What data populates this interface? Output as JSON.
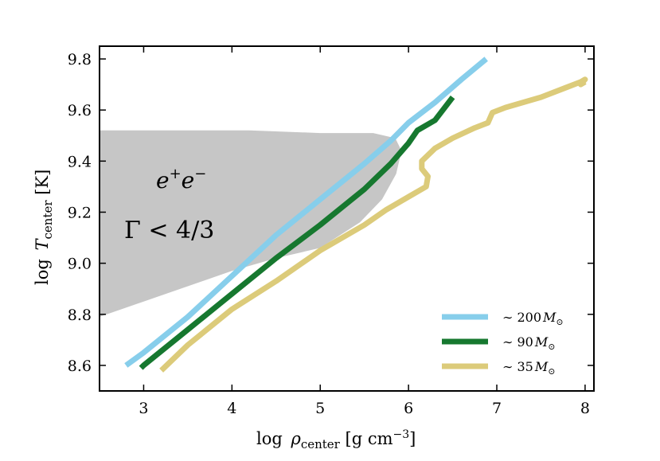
{
  "chart_data": {
    "type": "line",
    "title": "",
    "xlabel": {
      "prefix": "log ",
      "symbol": "ρ",
      "sub": "center",
      "units_pre": " [g cm",
      "units_sup": "−3",
      "units_post": "]"
    },
    "ylabel": {
      "prefix": "log ",
      "symbol": "T",
      "sub": "center",
      "units": " [K]"
    },
    "xlim": [
      2.5,
      8.1
    ],
    "ylim": [
      8.5,
      9.85
    ],
    "xticks": [
      3,
      4,
      5,
      6,
      7,
      8
    ],
    "yticks": [
      8.6,
      8.8,
      9.0,
      9.2,
      9.4,
      9.6,
      9.8
    ],
    "xtick_labels": [
      "3",
      "4",
      "5",
      "6",
      "7",
      "8"
    ],
    "ytick_labels": [
      "8.6",
      "8.8",
      "9.0",
      "9.2",
      "9.4",
      "9.6",
      "9.8"
    ],
    "instability_region": {
      "color": "#c6c6c6",
      "label_line1": {
        "e": "e",
        "plus": "+",
        "e2": "e",
        "minus": "−"
      },
      "label_line2": "Γ < 4/3",
      "points": [
        [
          2.5,
          9.52
        ],
        [
          4.2,
          9.52
        ],
        [
          5.0,
          9.51
        ],
        [
          5.6,
          9.51
        ],
        [
          5.85,
          9.49
        ],
        [
          5.92,
          9.44
        ],
        [
          5.86,
          9.35
        ],
        [
          5.7,
          9.25
        ],
        [
          5.45,
          9.16
        ],
        [
          5.0,
          9.06
        ],
        [
          4.5,
          9.02
        ],
        [
          4.0,
          8.97
        ],
        [
          3.5,
          8.91
        ],
        [
          3.0,
          8.85
        ],
        [
          2.5,
          8.79
        ]
      ]
    },
    "legend": {
      "placement": "lower-right"
    },
    "series": [
      {
        "name": "~200 Msun",
        "label_main": "∼ 200",
        "label_M": "M",
        "label_sub": "⊙",
        "color": "#87ceeb",
        "points": [
          [
            2.8,
            8.6
          ],
          [
            3.0,
            8.65
          ],
          [
            3.5,
            8.79
          ],
          [
            4.0,
            8.95
          ],
          [
            4.5,
            9.11
          ],
          [
            5.0,
            9.25
          ],
          [
            5.5,
            9.39
          ],
          [
            5.8,
            9.48
          ],
          [
            6.0,
            9.55
          ],
          [
            6.3,
            9.63
          ],
          [
            6.6,
            9.72
          ],
          [
            6.88,
            9.8
          ]
        ]
      },
      {
        "name": "~90 Msun",
        "label_main": "∼ 90",
        "label_M": "M",
        "label_sub": "⊙",
        "color": "#16782f",
        "points": [
          [
            2.97,
            8.59
          ],
          [
            3.0,
            8.6
          ],
          [
            3.5,
            8.74
          ],
          [
            4.0,
            8.88
          ],
          [
            4.5,
            9.02
          ],
          [
            5.0,
            9.15
          ],
          [
            5.5,
            9.29
          ],
          [
            5.8,
            9.39
          ],
          [
            6.0,
            9.47
          ],
          [
            6.1,
            9.52
          ],
          [
            6.3,
            9.56
          ],
          [
            6.5,
            9.65
          ]
        ]
      },
      {
        "name": "~35 Msun",
        "label_main": "∼ 35",
        "label_M": "M",
        "label_sub": "⊙",
        "color": "#dccb7a",
        "points": [
          [
            3.2,
            8.58
          ],
          [
            3.5,
            8.68
          ],
          [
            4.0,
            8.82
          ],
          [
            4.5,
            8.93
          ],
          [
            5.0,
            9.05
          ],
          [
            5.5,
            9.15
          ],
          [
            5.75,
            9.21
          ],
          [
            6.0,
            9.26
          ],
          [
            6.2,
            9.3
          ],
          [
            6.22,
            9.34
          ],
          [
            6.15,
            9.37
          ],
          [
            6.15,
            9.4
          ],
          [
            6.3,
            9.45
          ],
          [
            6.5,
            9.49
          ],
          [
            6.75,
            9.53
          ],
          [
            6.9,
            9.55
          ],
          [
            6.95,
            9.59
          ],
          [
            7.1,
            9.61
          ],
          [
            7.5,
            9.65
          ],
          [
            7.8,
            9.69
          ],
          [
            7.95,
            9.71
          ],
          [
            8.0,
            9.72
          ],
          [
            7.95,
            9.7
          ],
          [
            8.0,
            9.71
          ]
        ]
      }
    ]
  }
}
